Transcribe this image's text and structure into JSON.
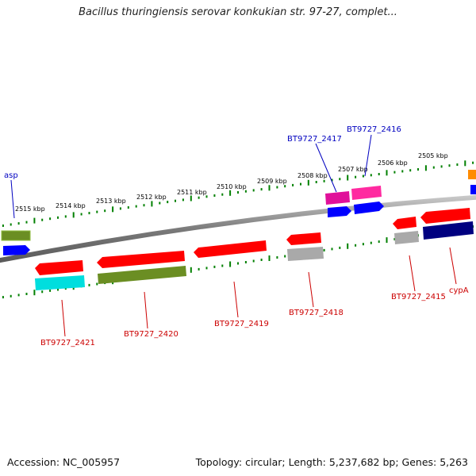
{
  "title": "Bacillus thuringiensis serovar konkukian str. 97-27, complet...",
  "footer": {
    "accession": "Accession: NC_005957",
    "summary": "Topology: circular; Length: 5,237,682 bp; Genes: 5,263"
  },
  "colors": {
    "backbone": "#808080",
    "tick": "#008000",
    "label_blue": "#0000c0",
    "label_red": "#cc0000",
    "feature_red": "#ff0000",
    "feature_blue": "#0000ff",
    "feature_olive": "#6b8e23",
    "feature_cyan": "#00e5e5",
    "feature_magenta": "#ff1493",
    "feature_gray": "#a9a9a9",
    "feature_navy": "#000080",
    "feature_orange": "#ff8c00"
  },
  "ruler": [
    "2515 kbp",
    "2514 kbp",
    "2513 kbp",
    "2512 kbp",
    "2511 kbp",
    "2510 kbp",
    "2509 kbp",
    "2508 kbp",
    "2507 kbp",
    "2506 kbp",
    "2505 kbp"
  ],
  "gene_labels": {
    "asp": "asp",
    "bt2417": "BT9727_2417",
    "bt2416": "BT9727_2416",
    "bt2421": "BT9727_2421",
    "bt2420": "BT9727_2420",
    "bt2419": "BT9727_2419",
    "bt2418": "BT9727_2418",
    "bt2415": "BT9727_2415",
    "cypA": "cypA"
  }
}
